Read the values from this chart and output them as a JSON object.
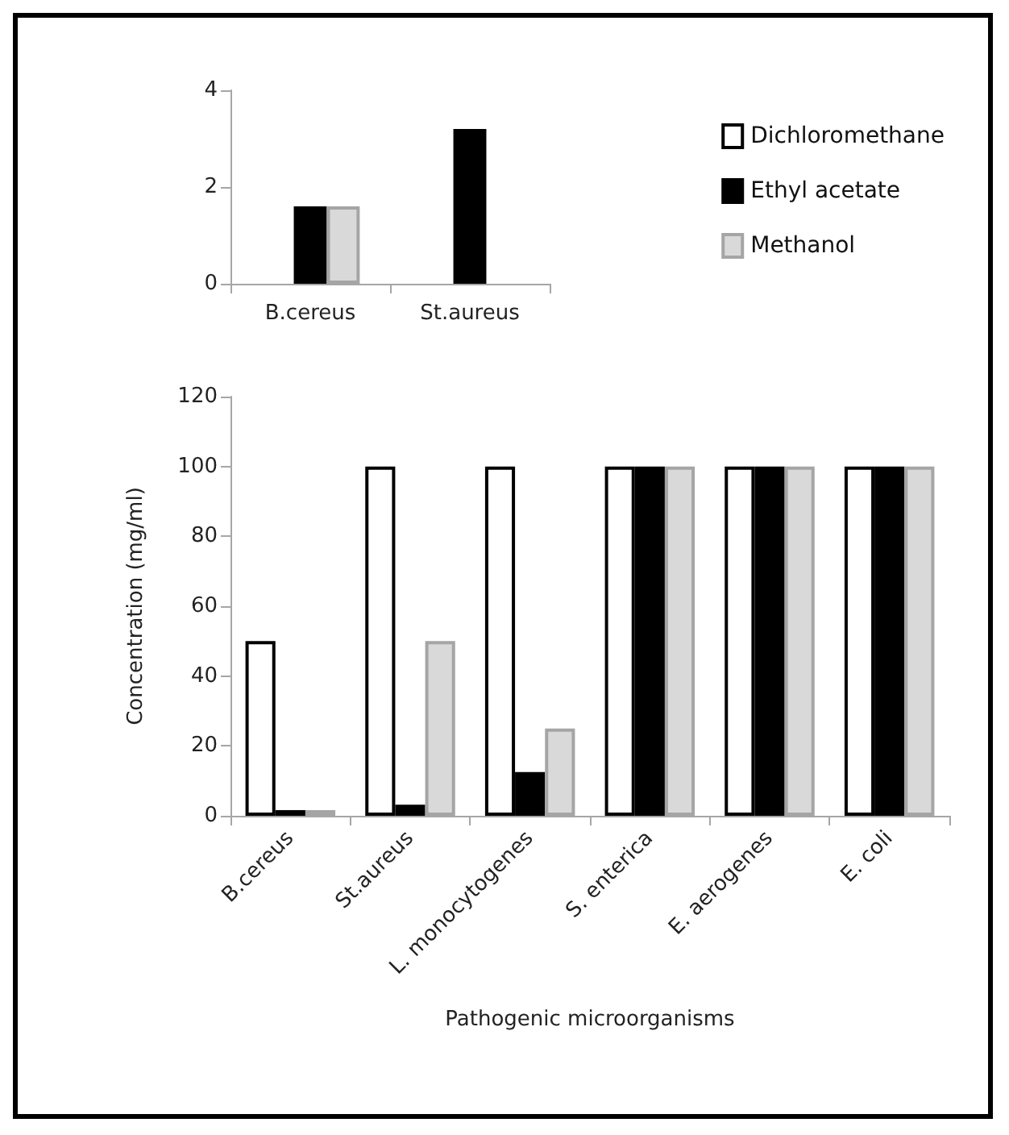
{
  "chart_data": [
    {
      "type": "bar",
      "categories": [
        "B.cereus",
        "St.aureus"
      ],
      "series": [
        {
          "name": "Dichloromethane",
          "color": "#ffffff",
          "values": [
            null,
            null
          ]
        },
        {
          "name": "Ethyl acetate",
          "color": "#000000",
          "values": [
            1.6,
            3.2
          ]
        },
        {
          "name": "Methanol",
          "color": "#d9d9d9",
          "values": [
            1.6,
            null
          ]
        }
      ],
      "ylim": [
        0,
        4
      ],
      "yticks": [
        0,
        2,
        4
      ],
      "grid": false,
      "legend": "right"
    },
    {
      "type": "bar",
      "categories": [
        "B.cereus",
        "St.aureus",
        "L. monocytogenes",
        "S. enterica",
        "E. aerogenes",
        "E. coli"
      ],
      "series": [
        {
          "color": "#ffffff",
          "values": [
            50,
            100,
            100,
            100,
            100,
            100
          ]
        },
        {
          "color": "#000000",
          "values": [
            1.6,
            3.2,
            12.5,
            100,
            100,
            100
          ]
        },
        {
          "color": "#d9d9d9",
          "values": [
            1.6,
            50,
            25,
            100,
            100,
            100
          ]
        }
      ],
      "ylim": [
        0,
        120
      ],
      "yticks": [
        0,
        20,
        40,
        60,
        80,
        100,
        120
      ],
      "grid": false,
      "legend": false,
      "xlabel": "Pathogenic microorganisms",
      "ylabel": "Concentration (mg/ml)"
    }
  ]
}
